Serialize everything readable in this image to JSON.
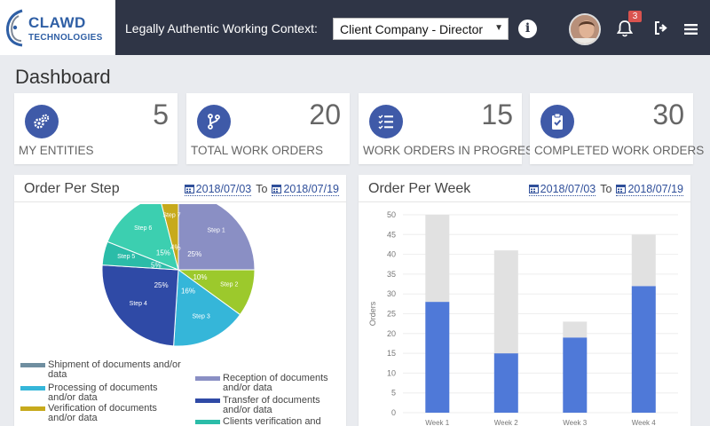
{
  "header": {
    "logo_name": "CLAWD",
    "logo_sub": "TECHNOLOGIES",
    "context_label": "Legally Authentic Working Context:",
    "context_value": "Client Company - Director",
    "notification_count": "3",
    "icons": [
      "info-icon",
      "bell-icon",
      "logout-icon",
      "menu-icon"
    ]
  },
  "page_title": "Dashboard",
  "stats": [
    {
      "value": "5",
      "label": "MY ENTITIES",
      "icon": "gears-icon"
    },
    {
      "value": "20",
      "label": "TOTAL WORK ORDERS",
      "icon": "branch-icon"
    },
    {
      "value": "15",
      "label": "WORK ORDERS IN PROGRESS",
      "icon": "checklist-icon"
    },
    {
      "value": "30",
      "label": "COMPLETED WORK ORDERS",
      "icon": "clipboard-check-icon"
    }
  ],
  "colors": {
    "accent": "#3f5aa8",
    "header_bg": "#2f3546",
    "bar_blue": "#4f79d8",
    "bar_grey": "#e1e1e1"
  },
  "order_per_step": {
    "title": "Order Per Step",
    "date_from": "2018/07/03",
    "to_label": "To",
    "date_to": "2018/07/19",
    "legend": [
      {
        "label": "Shipment of documents and/or data",
        "color": "#6f8ea0"
      },
      {
        "label": "Reception of documents and/or data",
        "color": "#8a8fc4"
      },
      {
        "label": "Processing of documents and/or data",
        "color": "#35b6d9"
      },
      {
        "label": "Transfer of documents and/or data",
        "color": "#2f4aa6"
      },
      {
        "label": "Verification of documents and/or data",
        "color": "#c7aa1c"
      },
      {
        "label": "Clients verification and",
        "color": "#2bbca8"
      }
    ]
  },
  "order_per_week": {
    "title": "Order Per Week",
    "date_from": "2018/07/03",
    "to_label": "To",
    "date_to": "2018/07/19"
  },
  "chart_data": [
    {
      "type": "pie",
      "title": "Order Per Step",
      "slices": [
        {
          "label": "Step 1",
          "value": 25,
          "pct_label": "25%",
          "color": "#8a8fc4"
        },
        {
          "label": "Step 2",
          "value": 10,
          "pct_label": "10%",
          "color": "#9cc92c"
        },
        {
          "label": "Step 3",
          "value": 16,
          "pct_label": "16%",
          "color": "#35b6d9"
        },
        {
          "label": "Step 4",
          "value": 25,
          "pct_label": "25%",
          "color": "#2f4aa6"
        },
        {
          "label": "Step 5",
          "value": 5,
          "pct_label": "5%",
          "color": "#2bbca8"
        },
        {
          "label": "Step 6",
          "value": 15,
          "pct_label": "15%",
          "color": "#3ccfb0"
        },
        {
          "label": "Step 7",
          "value": 4,
          "pct_label": "4%",
          "color": "#c7aa1c"
        }
      ]
    },
    {
      "type": "bar",
      "title": "Order Per Week",
      "categories": [
        "Week 1",
        "Week 2",
        "Week 3",
        "Week 4"
      ],
      "series": [
        {
          "values": [
            28,
            15,
            19,
            32
          ],
          "color": "#4f79d8"
        },
        {
          "values": [
            22,
            26,
            4,
            13
          ],
          "color": "#e1e1e1"
        }
      ],
      "stacked": true,
      "ylabel": "Orders",
      "ylim": [
        0,
        50
      ],
      "yticks": [
        0,
        5,
        10,
        15,
        20,
        25,
        30,
        35,
        40,
        45,
        50
      ],
      "grid": true
    }
  ]
}
